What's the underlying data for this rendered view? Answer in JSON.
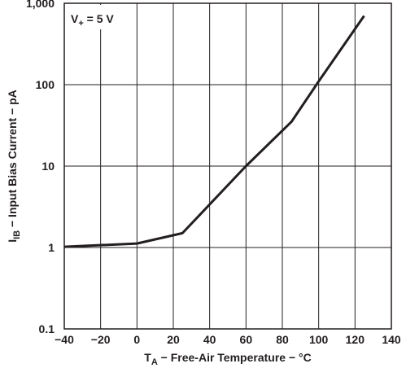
{
  "chart_data": {
    "type": "line",
    "annotation": {
      "main": "V",
      "sub": "+",
      "rest": " = 5 V"
    },
    "xlabel": {
      "main": "T",
      "sub": "A",
      "rest": " − Free-Air Temperature − °C"
    },
    "ylabel": {
      "main": "I",
      "sub": "IB",
      "rest": " − Input Bias Current − pA"
    },
    "x_ticks": [
      "−40",
      "−20",
      "0",
      "20",
      "40",
      "60",
      "80",
      "100",
      "120",
      "140"
    ],
    "x_tick_values": [
      -40,
      -20,
      0,
      20,
      40,
      60,
      80,
      100,
      120,
      140
    ],
    "y_ticks": [
      "0.1",
      "1",
      "10",
      "100",
      "1,000"
    ],
    "y_tick_values": [
      0.1,
      1,
      10,
      100,
      1000
    ],
    "xlim": [
      -40,
      140
    ],
    "ylim": [
      0.1,
      1000
    ],
    "y_scale": "log",
    "grid": true,
    "series": [
      {
        "x": [
          -40,
          0,
          25,
          60,
          85,
          100,
          125
        ],
        "y": [
          1.02,
          1.12,
          1.5,
          10,
          35,
          110,
          700
        ]
      }
    ],
    "colors": {
      "line": "#231f20",
      "grid": "#231f20",
      "frame": "#231f20",
      "label_bg": "#ffffff"
    }
  }
}
